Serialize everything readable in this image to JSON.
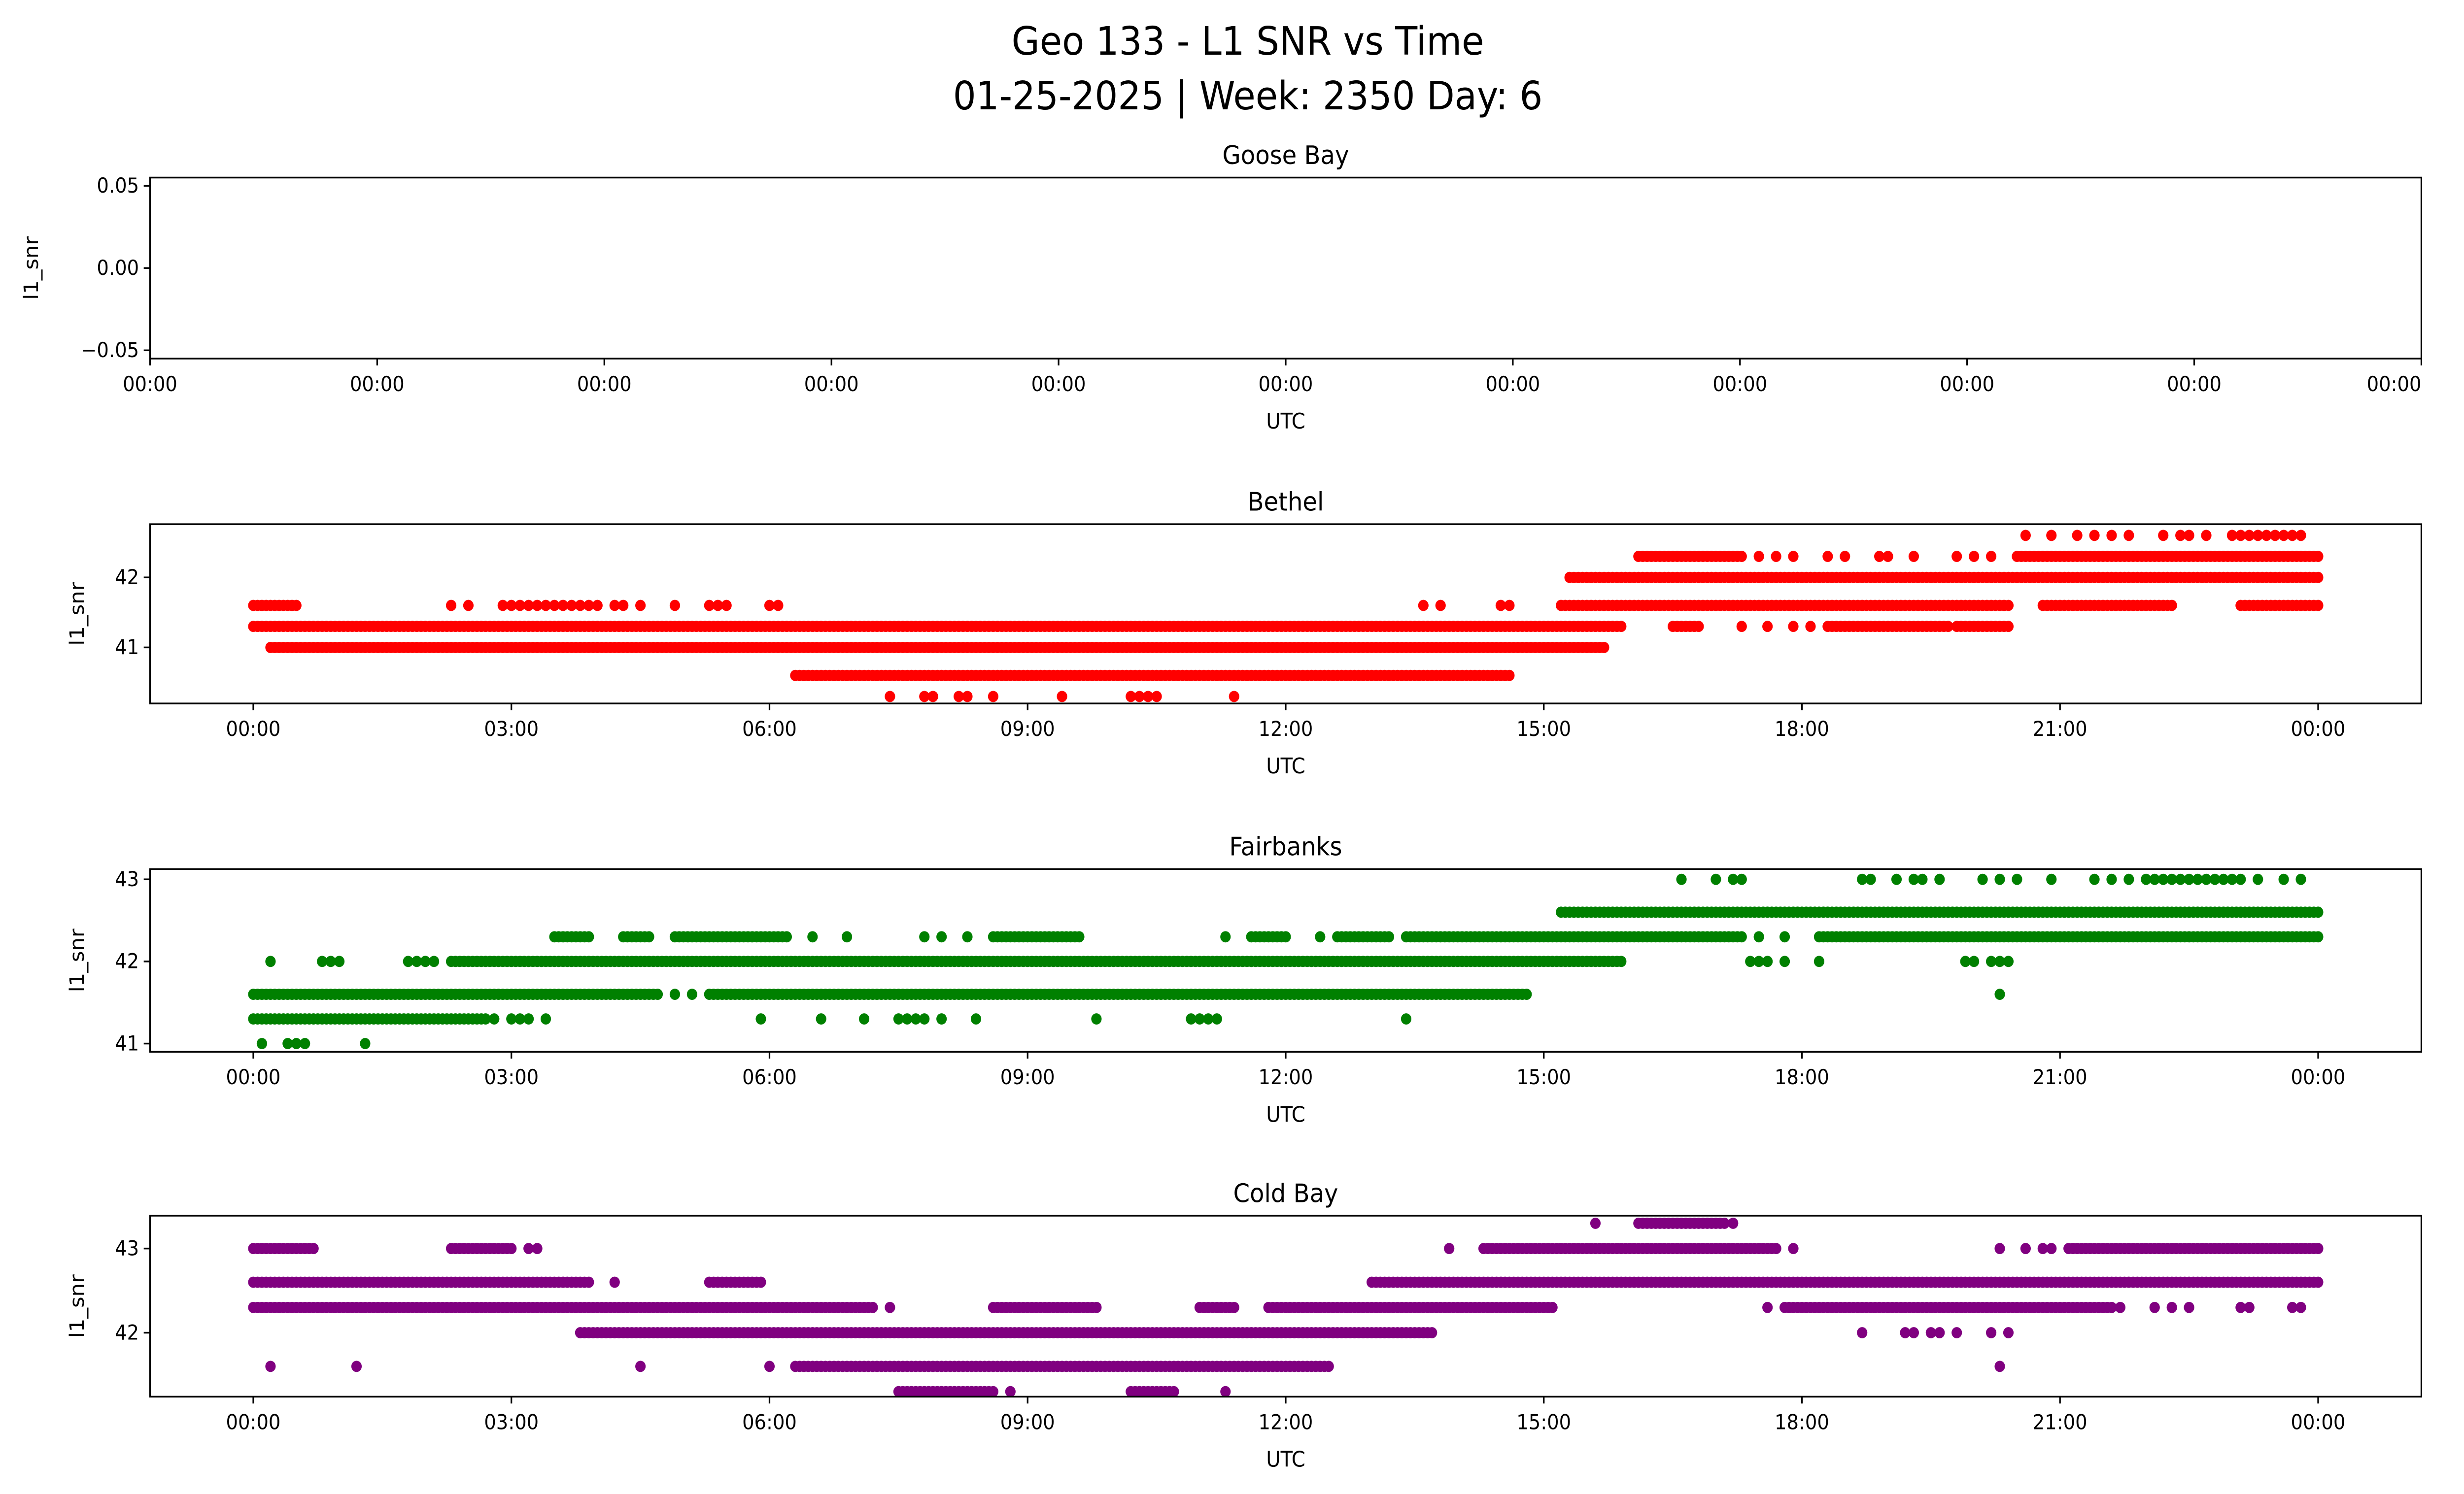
{
  "title_line1": "Geo 133 - L1 SNR vs Time",
  "title_line2": "01-25-2025 | Week: 2350 Day: 6",
  "chart_data": [
    {
      "type": "scatter",
      "title": "Goose Bay",
      "xlabel": "UTC",
      "ylabel": "l1_snr",
      "color": "#ff0000",
      "ylim": [
        -0.055,
        0.055
      ],
      "yticks": [
        0.05,
        0.0,
        -0.05
      ],
      "ytick_labels": [
        "0.05",
        "0.00",
        "−0.05"
      ],
      "xtick_labels": [
        "00:00",
        "00:00",
        "00:00",
        "00:00",
        "00:00",
        "00:00",
        "00:00",
        "00:00",
        "00:00",
        "00:00",
        "00:00"
      ],
      "levels": []
    },
    {
      "type": "scatter",
      "title": "Bethel",
      "xlabel": "UTC",
      "ylabel": "l1_snr",
      "color": "#ff0000",
      "xlim_hours": [
        -1.2,
        25.2
      ],
      "ylim": [
        40.2,
        42.76
      ],
      "yticks": [
        41,
        42
      ],
      "ytick_labels": [
        "41",
        "42"
      ],
      "xticks_hours": [
        0,
        3,
        6,
        9,
        12,
        15,
        18,
        21,
        24
      ],
      "xtick_labels": [
        "00:00",
        "03:00",
        "06:00",
        "09:00",
        "12:00",
        "15:00",
        "18:00",
        "21:00",
        "00:00"
      ],
      "levels": [
        {
          "snr": 40.3,
          "ranges": [],
          "points": [
            7.4,
            7.8,
            7.9,
            8.2,
            8.3,
            8.6,
            9.4,
            10.2,
            10.3,
            10.4,
            10.5,
            11.4
          ]
        },
        {
          "snr": 40.6,
          "ranges": [
            [
              6.3,
              14.6
            ]
          ],
          "points": []
        },
        {
          "snr": 41.0,
          "ranges": [
            [
              0.2,
              15.7
            ]
          ],
          "points": []
        },
        {
          "snr": 41.3,
          "ranges": [
            [
              0,
              15.9
            ],
            [
              16.5,
              16.8
            ],
            [
              18.3,
              19.7
            ],
            [
              19.8,
              20.4
            ]
          ],
          "points": [
            17.3,
            17.6,
            17.9,
            18.1
          ]
        },
        {
          "snr": 41.6,
          "ranges": [
            [
              0,
              0.5
            ],
            [
              15.2,
              20.4
            ],
            [
              20.8,
              22.3
            ],
            [
              23.1,
              24
            ]
          ],
          "points": [
            2.3,
            2.5,
            2.9,
            3.0,
            3.1,
            3.2,
            3.3,
            3.4,
            3.5,
            3.6,
            3.7,
            3.8,
            3.9,
            4.0,
            4.2,
            4.3,
            4.5,
            4.9,
            5.3,
            5.4,
            5.5,
            6.0,
            6.1,
            13.6,
            13.8,
            14.5,
            14.6
          ]
        },
        {
          "snr": 42.0,
          "ranges": [
            [
              15.3,
              24
            ]
          ],
          "points": []
        },
        {
          "snr": 42.3,
          "ranges": [
            [
              16.1,
              17.3
            ],
            [
              20.5,
              24
            ]
          ],
          "points": [
            17.5,
            17.7,
            17.9,
            18.3,
            18.5,
            18.9,
            19.0,
            19.3,
            19.8,
            20.0,
            20.2
          ]
        },
        {
          "snr": 42.6,
          "ranges": [],
          "points": [
            20.6,
            20.9,
            21.2,
            21.4,
            21.6,
            21.8,
            22.2,
            22.4,
            22.5,
            22.7,
            23.0,
            23.1,
            23.2,
            23.3,
            23.4,
            23.5,
            23.6,
            23.7,
            23.8
          ]
        }
      ]
    },
    {
      "type": "scatter",
      "title": "Fairbanks",
      "xlabel": "UTC",
      "ylabel": "l1_snr",
      "color": "#008000",
      "xlim_hours": [
        -1.2,
        25.2
      ],
      "ylim": [
        40.9,
        43.125
      ],
      "yticks": [
        41,
        42,
        43
      ],
      "ytick_labels": [
        "41",
        "42",
        "43"
      ],
      "xticks_hours": [
        0,
        3,
        6,
        9,
        12,
        15,
        18,
        21,
        24
      ],
      "xtick_labels": [
        "00:00",
        "03:00",
        "06:00",
        "09:00",
        "12:00",
        "15:00",
        "18:00",
        "21:00",
        "00:00"
      ],
      "levels": [
        {
          "snr": 41.0,
          "ranges": [],
          "points": [
            0.1,
            0.4,
            0.5,
            0.6,
            1.3
          ]
        },
        {
          "snr": 41.3,
          "ranges": [
            [
              0,
              2.7
            ]
          ],
          "points": [
            2.8,
            3.0,
            3.1,
            3.2,
            3.4,
            5.9,
            6.6,
            7.1,
            7.5,
            7.6,
            7.7,
            7.8,
            8.0,
            8.4,
            9.8,
            10.9,
            11.0,
            11.1,
            11.2,
            13.4
          ]
        },
        {
          "snr": 41.6,
          "ranges": [
            [
              0,
              4.7
            ],
            [
              5.3,
              14.8
            ]
          ],
          "points": [
            4.9,
            5.1,
            20.3
          ]
        },
        {
          "snr": 42.0,
          "ranges": [
            [
              2.3,
              15.9
            ]
          ],
          "points": [
            0.2,
            0.8,
            0.9,
            1.0,
            1.8,
            1.9,
            2.0,
            2.1,
            17.4,
            17.5,
            17.6,
            17.8,
            18.2,
            19.9,
            20.0,
            20.2,
            20.3,
            20.4
          ]
        },
        {
          "snr": 42.3,
          "ranges": [
            [
              3.5,
              3.9
            ],
            [
              4.3,
              4.6
            ],
            [
              4.9,
              6.2
            ],
            [
              8.6,
              9.6
            ],
            [
              11.6,
              12.0
            ],
            [
              12.6,
              13.2
            ],
            [
              13.4,
              17.3
            ],
            [
              18.2,
              24
            ]
          ],
          "points": [
            6.5,
            6.9,
            7.8,
            8.0,
            8.3,
            11.3,
            12.4,
            17.5,
            17.8
          ]
        },
        {
          "snr": 42.6,
          "ranges": [
            [
              15.2,
              24
            ]
          ],
          "points": []
        },
        {
          "snr": 43.0,
          "ranges": [],
          "points": [
            16.6,
            17.0,
            17.2,
            17.3,
            18.7,
            18.8,
            19.1,
            19.3,
            19.4,
            19.6,
            20.1,
            20.3,
            20.5,
            20.9,
            21.4,
            21.6,
            21.8,
            22.0,
            22.1,
            22.2,
            22.3,
            22.4,
            22.5,
            22.6,
            22.7,
            22.8,
            22.9,
            23.0,
            23.1,
            23.3,
            23.6,
            23.8
          ]
        }
      ]
    },
    {
      "type": "scatter",
      "title": "Cold Bay",
      "xlabel": "UTC",
      "ylabel": "l1_snr",
      "color": "#800080",
      "xlim_hours": [
        -1.2,
        25.2
      ],
      "ylim": [
        41.24,
        43.39
      ],
      "yticks": [
        42,
        43
      ],
      "ytick_labels": [
        "42",
        "43"
      ],
      "xticks_hours": [
        0,
        3,
        6,
        9,
        12,
        15,
        18,
        21,
        24
      ],
      "xtick_labels": [
        "00:00",
        "03:00",
        "06:00",
        "09:00",
        "12:00",
        "15:00",
        "18:00",
        "21:00",
        "00:00"
      ],
      "levels": [
        {
          "snr": 41.3,
          "ranges": [
            [
              7.5,
              8.6
            ],
            [
              10.2,
              10.7
            ]
          ],
          "points": [
            8.8,
            11.3
          ]
        },
        {
          "snr": 41.6,
          "ranges": [
            [
              6.3,
              12.5
            ]
          ],
          "points": [
            0.2,
            1.2,
            4.5,
            6.0,
            20.3
          ]
        },
        {
          "snr": 42.0,
          "ranges": [
            [
              3.8,
              13.7
            ]
          ],
          "points": [
            18.7,
            19.2,
            19.3,
            19.5,
            19.6,
            19.8,
            20.2,
            20.4
          ]
        },
        {
          "snr": 42.3,
          "ranges": [
            [
              0,
              7.2
            ],
            [
              8.6,
              9.8
            ],
            [
              11.0,
              11.4
            ],
            [
              11.8,
              15.1
            ],
            [
              17.8,
              21.6
            ]
          ],
          "points": [
            7.4,
            17.6,
            21.7,
            22.1,
            22.3,
            22.5,
            23.1,
            23.2,
            23.7,
            23.8
          ]
        },
        {
          "snr": 42.6,
          "ranges": [
            [
              0,
              3.9
            ],
            [
              5.3,
              5.9
            ],
            [
              13.0,
              24
            ]
          ],
          "points": [
            4.2
          ]
        },
        {
          "snr": 43.0,
          "ranges": [
            [
              0,
              0.7
            ],
            [
              2.3,
              3.0
            ],
            [
              14.3,
              17.7
            ],
            [
              21.1,
              24
            ]
          ],
          "points": [
            3.2,
            3.3,
            13.9,
            17.9,
            20.3,
            20.6,
            20.8,
            20.9
          ]
        },
        {
          "snr": 43.3,
          "ranges": [
            [
              16.1,
              17.1
            ]
          ],
          "points": [
            15.6,
            17.2
          ]
        }
      ]
    }
  ]
}
